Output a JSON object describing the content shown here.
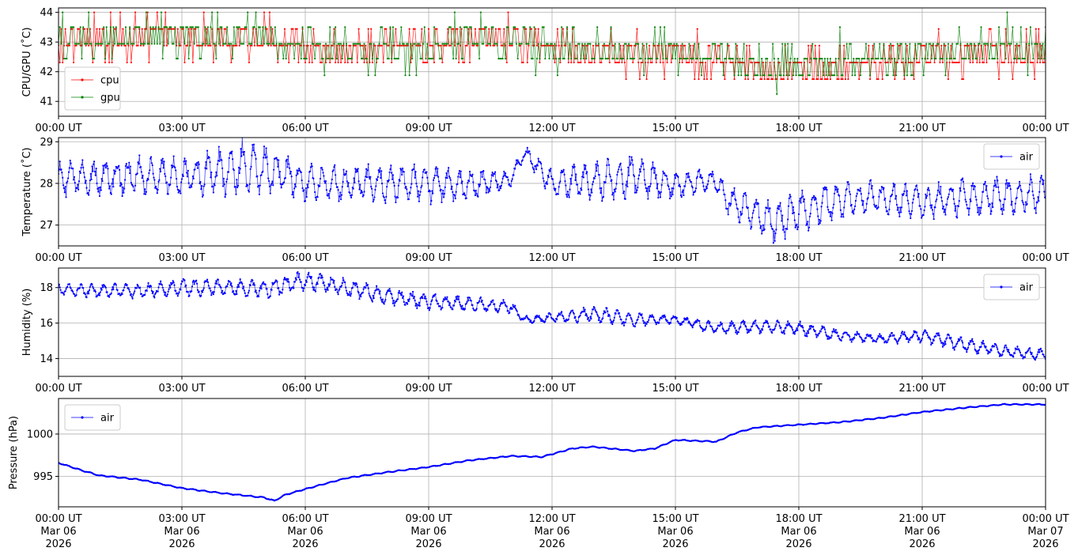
{
  "chart_data": [
    {
      "type": "line",
      "ylabel": "CPU/GPU (˚C)",
      "xlim": [
        "2026-03-06T00:00",
        "2026-03-07T00:00"
      ],
      "ylim": [
        40.5,
        44.15
      ],
      "yticks": [
        41,
        42,
        43,
        44
      ],
      "xtick_labels": [
        "00:00 UT",
        "03:00 UT",
        "06:00 UT",
        "09:00 UT",
        "12:00 UT",
        "15:00 UT",
        "18:00 UT",
        "21:00 UT",
        "00:00 UT"
      ],
      "grid": true,
      "legend_position": "lower-left",
      "series": [
        {
          "name": "cpu",
          "color": "#ff0000",
          "interval_min": 2,
          "levels": [
            41.75,
            42.31,
            42.88,
            43.44,
            44.0
          ],
          "x": [
            "00:00",
            "01:00",
            "02:00",
            "03:00",
            "04:00",
            "05:00",
            "06:00",
            "07:00",
            "08:00",
            "09:00",
            "10:00",
            "11:00",
            "12:00",
            "13:00",
            "14:00",
            "15:00",
            "16:00",
            "16:30",
            "17:00",
            "18:00",
            "19:00",
            "20:00",
            "21:00",
            "22:00",
            "23:00",
            "24:00"
          ],
          "y": [
            43.1,
            43.0,
            43.3,
            43.2,
            43.2,
            43.1,
            42.8,
            42.7,
            42.8,
            42.8,
            43.0,
            43.1,
            42.8,
            42.6,
            42.6,
            42.6,
            42.4,
            42.2,
            42.0,
            42.1,
            42.2,
            42.4,
            42.5,
            42.6,
            42.7,
            42.7
          ],
          "spread": 0.45
        },
        {
          "name": "gpu",
          "color": "#008000",
          "interval_min": 2,
          "levels": [
            41.25,
            41.88,
            42.44,
            42.94,
            43.5,
            44.0
          ],
          "x": [
            "00:00",
            "01:00",
            "02:00",
            "03:00",
            "04:00",
            "05:00",
            "06:00",
            "07:00",
            "08:00",
            "09:00",
            "10:00",
            "11:00",
            "12:00",
            "13:00",
            "14:00",
            "15:00",
            "16:00",
            "16:30",
            "17:00",
            "18:00",
            "19:00",
            "20:00",
            "21:00",
            "22:00",
            "23:00",
            "24:00"
          ],
          "y": [
            43.1,
            43.0,
            43.2,
            43.1,
            43.2,
            43.1,
            42.8,
            42.7,
            42.8,
            42.8,
            43.0,
            43.1,
            42.8,
            42.7,
            42.7,
            42.7,
            42.5,
            42.3,
            42.1,
            42.3,
            42.4,
            42.5,
            42.6,
            42.7,
            42.8,
            42.8
          ],
          "spread": 0.45
        }
      ]
    },
    {
      "type": "line",
      "ylabel": "Temperature (˚C)",
      "xlim": [
        "2026-03-06T00:00",
        "2026-03-07T00:00"
      ],
      "ylim": [
        26.5,
        29.1
      ],
      "yticks": [
        27,
        28,
        29
      ],
      "xtick_labels": [
        "00:00 UT",
        "03:00 UT",
        "06:00 UT",
        "09:00 UT",
        "12:00 UT",
        "15:00 UT",
        "18:00 UT",
        "21:00 UT",
        "00:00 UT"
      ],
      "grid": true,
      "legend_position": "upper-right",
      "series": [
        {
          "name": "air",
          "color": "#0000ff",
          "interval_min": 1,
          "x": [
            "00:00",
            "01:00",
            "02:00",
            "03:00",
            "04:00",
            "04:30",
            "05:00",
            "06:00",
            "07:00",
            "08:00",
            "09:00",
            "10:00",
            "11:00",
            "11:20",
            "12:00",
            "13:00",
            "14:00",
            "15:00",
            "16:00",
            "16:10",
            "17:00",
            "17:30",
            "18:00",
            "19:00",
            "20:00",
            "21:00",
            "22:00",
            "23:00",
            "24:00"
          ],
          "y": [
            28.1,
            28.15,
            28.2,
            28.15,
            28.3,
            28.4,
            28.35,
            28.05,
            28.0,
            28.0,
            28.0,
            27.95,
            28.1,
            28.75,
            28.0,
            28.05,
            28.2,
            27.95,
            28.1,
            27.7,
            27.2,
            27.05,
            27.35,
            27.6,
            27.65,
            27.55,
            27.65,
            27.7,
            27.75
          ],
          "amplitude": [
            0.32,
            0.35,
            0.35,
            0.35,
            0.45,
            0.5,
            0.45,
            0.35,
            0.35,
            0.35,
            0.35,
            0.3,
            0.15,
            0.12,
            0.25,
            0.35,
            0.4,
            0.25,
            0.2,
            0.25,
            0.35,
            0.4,
            0.4,
            0.35,
            0.3,
            0.3,
            0.35,
            0.35,
            0.35
          ]
        }
      ]
    },
    {
      "type": "line",
      "ylabel": "Humidity (%)",
      "xlim": [
        "2026-03-06T00:00",
        "2026-03-07T00:00"
      ],
      "ylim": [
        13.0,
        19.1
      ],
      "yticks": [
        14,
        16,
        18
      ],
      "xtick_labels": [
        "00:00 UT",
        "03:00 UT",
        "06:00 UT",
        "09:00 UT",
        "12:00 UT",
        "15:00 UT",
        "18:00 UT",
        "21:00 UT",
        "00:00 UT"
      ],
      "grid": true,
      "legend_position": "upper-right",
      "series": [
        {
          "name": "air",
          "color": "#0000ff",
          "interval_min": 1,
          "x": [
            "00:00",
            "01:00",
            "02:00",
            "03:00",
            "04:00",
            "05:00",
            "06:00",
            "07:00",
            "08:00",
            "09:00",
            "10:00",
            "11:00",
            "11:20",
            "12:00",
            "13:00",
            "14:00",
            "15:00",
            "16:00",
            "17:00",
            "18:00",
            "19:00",
            "20:00",
            "21:00",
            "22:00",
            "23:00",
            "24:00"
          ],
          "y": [
            17.9,
            17.8,
            17.8,
            18.0,
            18.0,
            17.9,
            18.4,
            18.0,
            17.5,
            17.2,
            17.1,
            16.9,
            16.2,
            16.3,
            16.5,
            16.2,
            16.2,
            15.7,
            15.8,
            15.7,
            15.3,
            15.1,
            15.3,
            14.8,
            14.4,
            14.2
          ],
          "amplitude": [
            0.25,
            0.3,
            0.3,
            0.35,
            0.35,
            0.4,
            0.4,
            0.4,
            0.35,
            0.35,
            0.3,
            0.25,
            0.15,
            0.2,
            0.35,
            0.3,
            0.2,
            0.25,
            0.3,
            0.3,
            0.25,
            0.2,
            0.3,
            0.3,
            0.25,
            0.25
          ]
        }
      ]
    },
    {
      "type": "line",
      "ylabel": "Pressure (hPa)",
      "xlim": [
        "2026-03-06T00:00",
        "2026-03-07T00:00"
      ],
      "ylim": [
        991.4,
        1004.2
      ],
      "yticks": [
        995,
        1000
      ],
      "xtick_labels": [
        "00:00 UT\nMar 06\n2026",
        "03:00 UT\nMar 06\n2026",
        "06:00 UT\nMar 06\n2026",
        "09:00 UT\nMar 06\n2026",
        "12:00 UT\nMar 06\n2026",
        "15:00 UT\nMar 06\n2026",
        "18:00 UT\nMar 06\n2026",
        "21:00 UT\nMar 06\n2026",
        "00:00 UT\nMar 07\n2026"
      ],
      "grid": true,
      "legend_position": "upper-left",
      "series": [
        {
          "name": "air",
          "color": "#0000ff",
          "interval_min": 1,
          "x": [
            "00:00",
            "00:30",
            "01:00",
            "02:00",
            "03:00",
            "04:00",
            "05:00",
            "05:15",
            "05:30",
            "06:00",
            "07:00",
            "08:00",
            "09:00",
            "10:00",
            "11:00",
            "11:45",
            "12:30",
            "13:00",
            "14:00",
            "14:30",
            "15:00",
            "16:00",
            "16:30",
            "17:00",
            "18:00",
            "19:00",
            "20:00",
            "21:00",
            "22:00",
            "23:00",
            "24:00"
          ],
          "y": [
            996.6,
            995.8,
            995.1,
            994.6,
            993.6,
            993.0,
            992.5,
            992.1,
            992.8,
            993.5,
            994.8,
            995.5,
            996.1,
            996.9,
            997.4,
            997.3,
            998.3,
            998.5,
            998.0,
            998.3,
            999.3,
            999.1,
            1000.2,
            1000.8,
            1001.1,
            1001.4,
            1001.9,
            1002.6,
            1003.1,
            1003.5,
            1003.5
          ],
          "amplitude": [
            0.05,
            0.05,
            0.05,
            0.05,
            0.05,
            0.05,
            0.05,
            0.05,
            0.05,
            0.05,
            0.05,
            0.05,
            0.05,
            0.05,
            0.05,
            0.05,
            0.05,
            0.05,
            0.05,
            0.05,
            0.05,
            0.05,
            0.05,
            0.05,
            0.05,
            0.05,
            0.05,
            0.05,
            0.05,
            0.05,
            0.05
          ]
        }
      ]
    }
  ]
}
